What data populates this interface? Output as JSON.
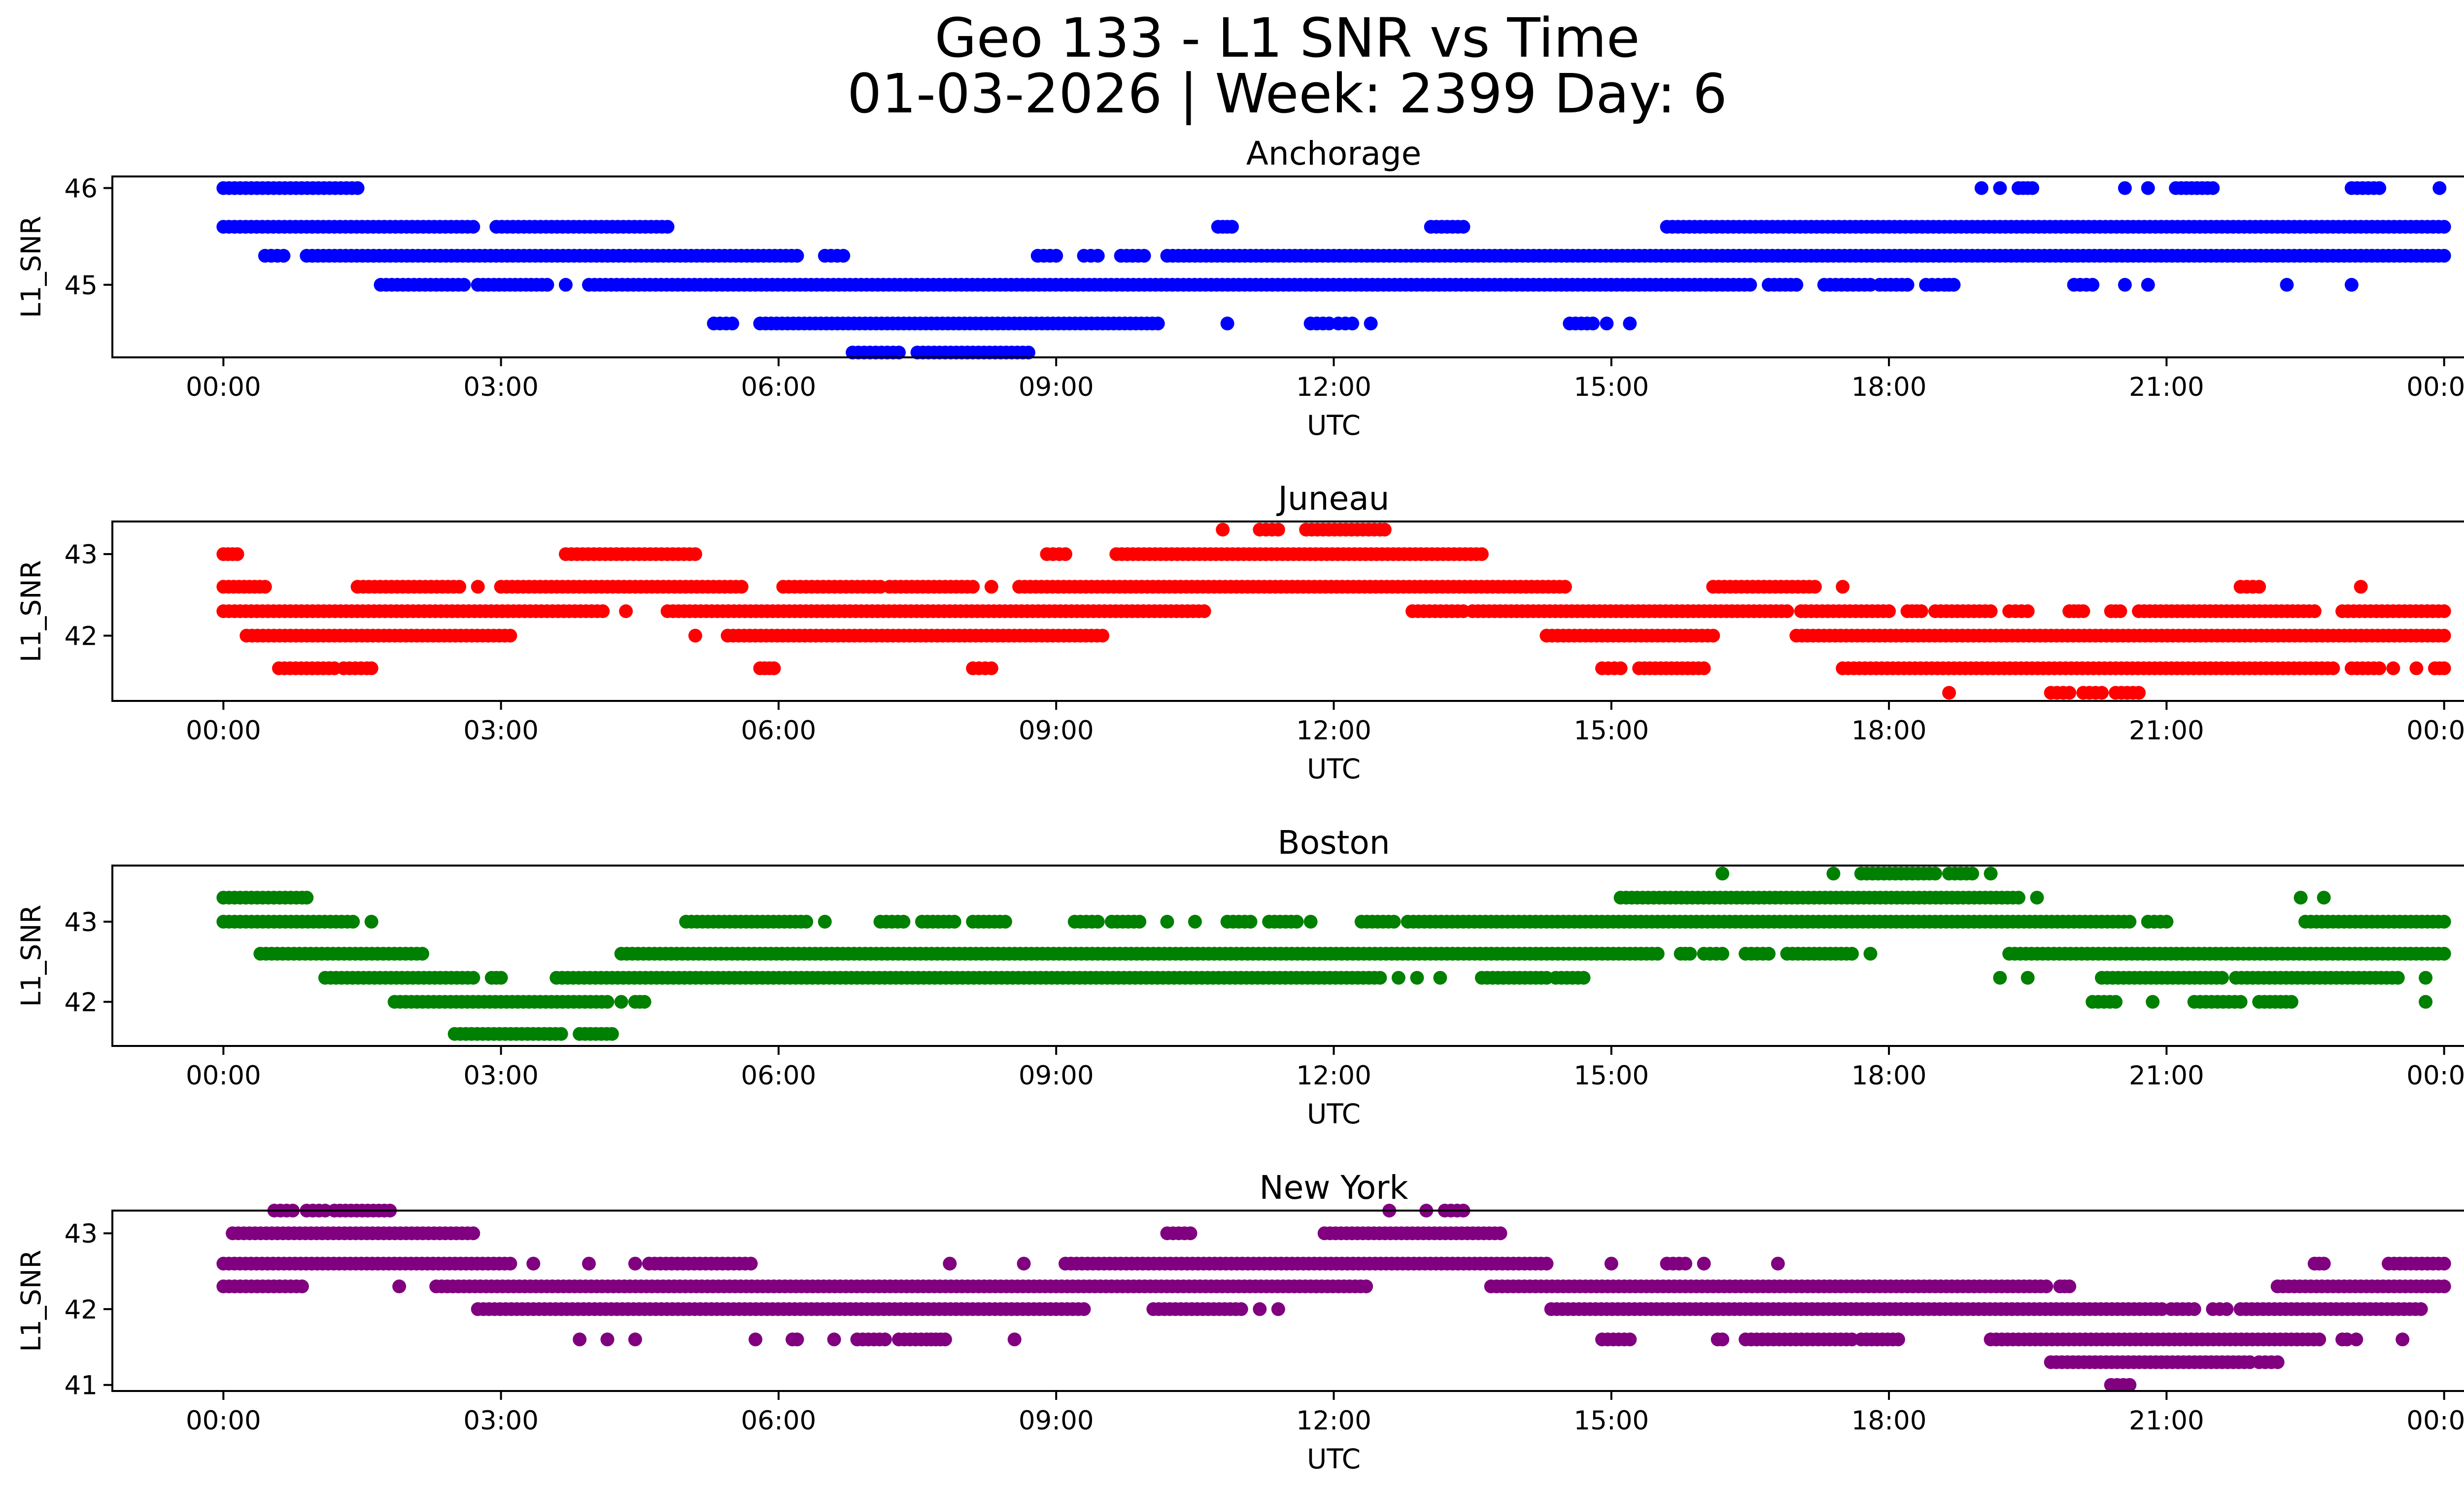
{
  "figure": {
    "title_line1": "Geo 133 - L1 SNR vs Time",
    "title_line2": "01-03-2026 | Week: 2399 Day: 6"
  },
  "chart_data": [
    {
      "type": "scatter",
      "title": "Anchorage",
      "xlabel": "UTC",
      "ylabel": "L1_SNR",
      "color": "#0000ff",
      "xlim": [
        -1.2,
        25.2
      ],
      "ylim": [
        44.25,
        46.12
      ],
      "xticks": [
        0,
        3,
        6,
        9,
        12,
        15,
        18,
        21,
        24
      ],
      "xticklabels": [
        "00:00",
        "03:00",
        "06:00",
        "09:00",
        "12:00",
        "15:00",
        "18:00",
        "21:00",
        "00:00"
      ],
      "yticks": [
        45,
        46
      ],
      "yticklabels": [
        "45",
        "46"
      ],
      "series": [
        {
          "y": 46.0,
          "runs": [
            [
              0,
              1.45
            ],
            [
              19.0,
              19.0
            ],
            [
              19.2,
              19.2
            ],
            [
              19.4,
              19.55
            ],
            [
              20.55,
              20.55
            ],
            [
              20.8,
              20.8
            ],
            [
              21.1,
              21.5
            ],
            [
              23.0,
              23.3
            ],
            [
              23.95,
              23.95
            ]
          ]
        },
        {
          "y": 45.6,
          "runs": [
            [
              0,
              2.7
            ],
            [
              2.95,
              4.8
            ],
            [
              10.75,
              10.9
            ],
            [
              13.05,
              13.4
            ],
            [
              15.6,
              24
            ]
          ]
        },
        {
          "y": 45.3,
          "runs": [
            [
              0.45,
              0.65
            ],
            [
              0.9,
              6.2
            ],
            [
              6.5,
              6.7
            ],
            [
              8.8,
              9.0
            ],
            [
              9.3,
              9.45
            ],
            [
              9.7,
              9.95
            ],
            [
              10.2,
              24
            ]
          ]
        },
        {
          "y": 45.0,
          "runs": [
            [
              1.7,
              2.6
            ],
            [
              2.75,
              3.5
            ],
            [
              3.7,
              3.7
            ],
            [
              3.95,
              16.5
            ],
            [
              16.7,
              17.0
            ],
            [
              17.3,
              17.8
            ],
            [
              17.9,
              18.2
            ],
            [
              18.4,
              18.6
            ],
            [
              18.65,
              18.65
            ],
            [
              18.7,
              18.7
            ],
            [
              20.0,
              20.2
            ],
            [
              20.55,
              20.55
            ],
            [
              20.8,
              20.8
            ],
            [
              22.3,
              22.3
            ],
            [
              23.0,
              23.0
            ]
          ]
        },
        {
          "y": 44.6,
          "runs": [
            [
              5.3,
              5.5
            ],
            [
              5.8,
              10.1
            ],
            [
              10.85,
              10.85
            ],
            [
              11.75,
              11.95
            ],
            [
              12.05,
              12.2
            ],
            [
              12.4,
              12.4
            ],
            [
              14.55,
              14.8
            ],
            [
              14.95,
              14.95
            ],
            [
              15.2,
              15.2
            ]
          ]
        },
        {
          "y": 44.3,
          "runs": [
            [
              6.8,
              7.3
            ],
            [
              7.5,
              8.7
            ]
          ]
        }
      ]
    },
    {
      "type": "scatter",
      "title": "Juneau",
      "xlabel": "UTC",
      "ylabel": "L1_SNR",
      "color": "#ff0000",
      "xlim": [
        -1.2,
        25.2
      ],
      "ylim": [
        41.2,
        43.4
      ],
      "xticks": [
        0,
        3,
        6,
        9,
        12,
        15,
        18,
        21,
        24
      ],
      "xticklabels": [
        "00:00",
        "03:00",
        "06:00",
        "09:00",
        "12:00",
        "15:00",
        "18:00",
        "21:00",
        "00:00"
      ],
      "yticks": [
        42,
        43
      ],
      "yticklabels": [
        "42",
        "43"
      ],
      "series": [
        {
          "y": 43.3,
          "runs": [
            [
              10.8,
              10.8
            ],
            [
              11.2,
              11.4
            ],
            [
              11.7,
              12.5
            ],
            [
              12.55,
              12.55
            ]
          ]
        },
        {
          "y": 43.0,
          "runs": [
            [
              0,
              0.15
            ],
            [
              3.7,
              5.1
            ],
            [
              8.9,
              9.1
            ],
            [
              9.65,
              13.6
            ]
          ]
        },
        {
          "y": 42.6,
          "runs": [
            [
              0,
              0.45
            ],
            [
              1.45,
              2.55
            ],
            [
              2.75,
              2.75
            ],
            [
              3.0,
              5.6
            ],
            [
              6.05,
              7.1
            ],
            [
              7.2,
              8.1
            ],
            [
              8.3,
              8.3
            ],
            [
              8.6,
              14.5
            ],
            [
              16.1,
              17.2
            ],
            [
              17.5,
              17.5
            ],
            [
              21.8,
              22.0
            ],
            [
              23.1,
              23.1
            ]
          ]
        },
        {
          "y": 42.3,
          "runs": [
            [
              0,
              4.1
            ],
            [
              4.35,
              4.35
            ],
            [
              4.8,
              10.6
            ],
            [
              12.85,
              13.4
            ],
            [
              13.5,
              16.9
            ],
            [
              17.05,
              17.05
            ],
            [
              17.1,
              18.0
            ],
            [
              18.2,
              18.35
            ],
            [
              18.5,
              19.1
            ],
            [
              19.3,
              19.5
            ],
            [
              19.95,
              20.1
            ],
            [
              20.4,
              20.5
            ],
            [
              20.7,
              22.6
            ],
            [
              22.9,
              24
            ]
          ]
        },
        {
          "y": 42.0,
          "runs": [
            [
              0.25,
              3.1
            ],
            [
              5.1,
              5.1
            ],
            [
              5.45,
              9.5
            ],
            [
              14.3,
              16.1
            ],
            [
              17.0,
              24
            ]
          ]
        },
        {
          "y": 41.6,
          "runs": [
            [
              0.6,
              1.2
            ],
            [
              1.3,
              1.55
            ],
            [
              1.6,
              1.6
            ],
            [
              5.8,
              5.95
            ],
            [
              8.1,
              8.3
            ],
            [
              14.9,
              15.1
            ],
            [
              15.3,
              16.0
            ],
            [
              17.5,
              22.8
            ],
            [
              23.0,
              23.3
            ],
            [
              23.45,
              23.45
            ],
            [
              23.7,
              23.7
            ],
            [
              23.9,
              24
            ]
          ]
        },
        {
          "y": 41.3,
          "runs": [
            [
              18.65,
              18.65
            ],
            [
              19.75,
              19.95
            ],
            [
              20.1,
              20.3
            ],
            [
              20.45,
              20.7
            ]
          ]
        }
      ]
    },
    {
      "type": "scatter",
      "title": "Boston",
      "xlabel": "UTC",
      "ylabel": "L1_SNR",
      "color": "#008000",
      "xlim": [
        -1.2,
        25.2
      ],
      "ylim": [
        41.45,
        43.7
      ],
      "xticks": [
        0,
        3,
        6,
        9,
        12,
        15,
        18,
        21,
        24
      ],
      "xticklabels": [
        "00:00",
        "03:00",
        "06:00",
        "09:00",
        "12:00",
        "15:00",
        "18:00",
        "21:00",
        "00:00"
      ],
      "yticks": [
        42,
        43
      ],
      "yticklabels": [
        "42",
        "43"
      ],
      "series": [
        {
          "y": 43.6,
          "runs": [
            [
              16.2,
              16.2
            ],
            [
              17.4,
              17.4
            ],
            [
              17.7,
              18.5
            ],
            [
              18.65,
              18.9
            ],
            [
              19.1,
              19.1
            ]
          ]
        },
        {
          "y": 43.3,
          "runs": [
            [
              0,
              0.85
            ],
            [
              0.9,
              0.9
            ],
            [
              15.1,
              19.4
            ],
            [
              19.6,
              19.6
            ],
            [
              22.45,
              22.45
            ],
            [
              22.7,
              22.7
            ]
          ]
        },
        {
          "y": 43.0,
          "runs": [
            [
              0,
              1.4
            ],
            [
              1.6,
              1.6
            ],
            [
              5.0,
              6.3
            ],
            [
              6.5,
              6.5
            ],
            [
              7.1,
              7.35
            ],
            [
              7.55,
              7.9
            ],
            [
              8.1,
              8.45
            ],
            [
              9.2,
              9.45
            ],
            [
              9.6,
              9.9
            ],
            [
              10.2,
              10.2
            ],
            [
              10.5,
              10.5
            ],
            [
              10.85,
              11.1
            ],
            [
              11.3,
              11.6
            ],
            [
              11.75,
              11.75
            ],
            [
              12.3,
              12.65
            ],
            [
              12.8,
              20.6
            ],
            [
              20.8,
              21.0
            ],
            [
              22.5,
              24
            ]
          ]
        },
        {
          "y": 42.6,
          "runs": [
            [
              0.4,
              2.15
            ],
            [
              4.3,
              15.5
            ],
            [
              15.75,
              15.85
            ],
            [
              16.0,
              16.2
            ],
            [
              16.45,
              16.7
            ],
            [
              16.9,
              17.6
            ],
            [
              17.8,
              17.8
            ],
            [
              19.3,
              24
            ]
          ]
        },
        {
          "y": 42.3,
          "runs": [
            [
              1.1,
              2.7
            ],
            [
              2.9,
              3.0
            ],
            [
              3.6,
              12.5
            ],
            [
              12.7,
              12.7
            ],
            [
              12.9,
              12.9
            ],
            [
              13.15,
              13.15
            ],
            [
              13.6,
              14.3
            ],
            [
              14.4,
              14.7
            ],
            [
              19.2,
              19.2
            ],
            [
              19.5,
              19.5
            ],
            [
              20.3,
              21.6
            ],
            [
              21.75,
              23.5
            ],
            [
              23.8,
              23.8
            ]
          ]
        },
        {
          "y": 42.0,
          "runs": [
            [
              1.85,
              4.15
            ],
            [
              4.3,
              4.3
            ],
            [
              4.45,
              4.55
            ],
            [
              20.2,
              20.45
            ],
            [
              20.85,
              20.85
            ],
            [
              21.3,
              21.8
            ],
            [
              22.0,
              22.35
            ],
            [
              23.8,
              23.8
            ]
          ]
        },
        {
          "y": 41.6,
          "runs": [
            [
              2.5,
              3.65
            ],
            [
              3.85,
              4.2
            ]
          ]
        }
      ]
    },
    {
      "type": "scatter",
      "title": "New York",
      "xlabel": "UTC",
      "ylabel": "L1_SNR",
      "color": "#800080",
      "xlim": [
        -1.2,
        25.2
      ],
      "ylim": [
        40.92,
        43.3
      ],
      "xticks": [
        0,
        3,
        6,
        9,
        12,
        15,
        18,
        21,
        24
      ],
      "xticklabels": [
        "00:00",
        "03:00",
        "06:00",
        "09:00",
        "12:00",
        "15:00",
        "18:00",
        "21:00",
        "00:00"
      ],
      "yticks": [
        41,
        42,
        43
      ],
      "yticklabels": [
        "41",
        "42",
        "43"
      ],
      "series": [
        {
          "y": 43.3,
          "runs": [
            [
              0.55,
              0.75
            ],
            [
              0.9,
              1.1
            ],
            [
              1.2,
              1.8
            ],
            [
              12.6,
              12.6
            ],
            [
              13.0,
              13.0
            ],
            [
              13.2,
              13.4
            ]
          ]
        },
        {
          "y": 43.0,
          "runs": [
            [
              0.1,
              2.7
            ],
            [
              10.2,
              10.45
            ],
            [
              11.9,
              13.8
            ]
          ]
        },
        {
          "y": 42.6,
          "runs": [
            [
              0,
              3.1
            ],
            [
              3.35,
              3.35
            ],
            [
              3.95,
              3.95
            ],
            [
              4.45,
              4.45
            ],
            [
              4.6,
              5.7
            ],
            [
              7.85,
              7.85
            ],
            [
              8.65,
              8.65
            ],
            [
              9.1,
              14.3
            ],
            [
              15.0,
              15.0
            ],
            [
              15.6,
              15.8
            ],
            [
              16.0,
              16.0
            ],
            [
              16.8,
              16.8
            ],
            [
              22.6,
              22.7
            ],
            [
              23.4,
              24
            ]
          ]
        },
        {
          "y": 42.3,
          "runs": [
            [
              0,
              0.85
            ],
            [
              1.9,
              1.9
            ],
            [
              2.3,
              12.35
            ],
            [
              13.7,
              19.7
            ],
            [
              19.85,
              19.95
            ],
            [
              22.2,
              24
            ]
          ]
        },
        {
          "y": 42.0,
          "runs": [
            [
              2.75,
              9.3
            ],
            [
              10.05,
              11.0
            ],
            [
              11.2,
              11.2
            ],
            [
              11.4,
              11.4
            ],
            [
              14.35,
              20.95
            ],
            [
              21.05,
              21.3
            ],
            [
              21.5,
              21.65
            ],
            [
              21.8,
              23.75
            ]
          ]
        },
        {
          "y": 41.6,
          "runs": [
            [
              3.85,
              3.85
            ],
            [
              4.15,
              4.15
            ],
            [
              4.45,
              4.45
            ],
            [
              5.75,
              5.75
            ],
            [
              6.15,
              6.2
            ],
            [
              6.6,
              6.6
            ],
            [
              6.85,
              7.15
            ],
            [
              7.3,
              7.6
            ],
            [
              7.65,
              7.75
            ],
            [
              7.8,
              7.8
            ],
            [
              8.55,
              8.55
            ],
            [
              14.9,
              15.2
            ],
            [
              16.15,
              16.2
            ],
            [
              16.45,
              17.6
            ],
            [
              17.7,
              18.1
            ],
            [
              19.1,
              22.65
            ],
            [
              22.9,
              22.95
            ],
            [
              23.05,
              23.05
            ],
            [
              23.55,
              23.55
            ]
          ]
        },
        {
          "y": 41.3,
          "runs": [
            [
              19.75,
              21.9
            ],
            [
              22.0,
              22.2
            ]
          ]
        },
        {
          "y": 41.0,
          "runs": [
            [
              20.4,
              20.6
            ]
          ]
        }
      ]
    }
  ]
}
